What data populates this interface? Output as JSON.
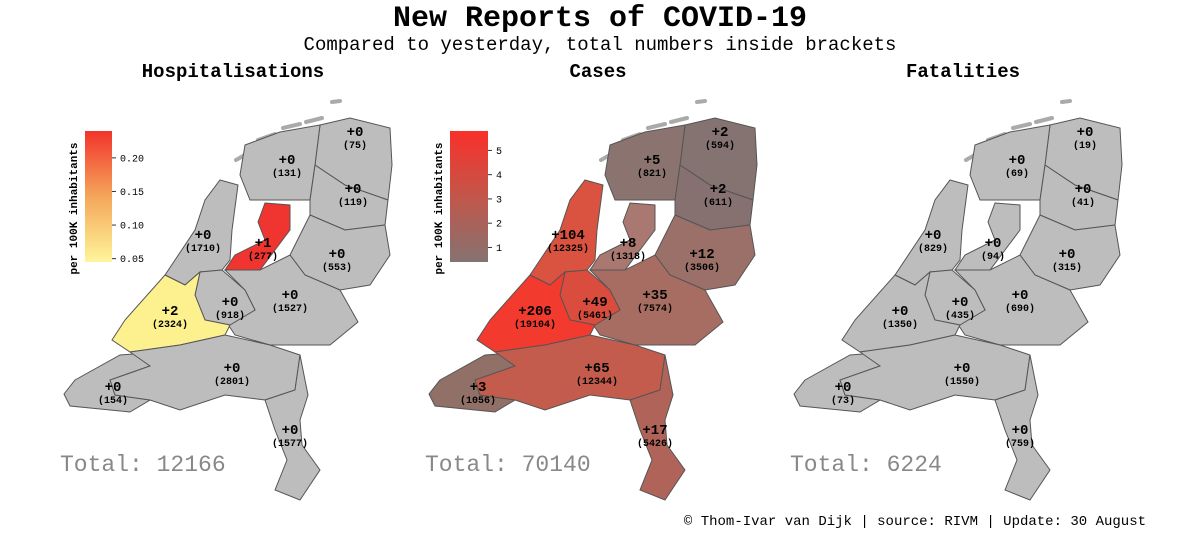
{
  "title": "New Reports of COVID-19",
  "subtitle": "Compared to yesterday, total numbers inside brackets",
  "credit": "© Thom-Ivar van Dijk | source: RIVM | Update: 30 August",
  "maps": [
    {
      "title": "Hospitalisations",
      "total": "Total: 12166",
      "colorbar": {
        "label": "per 100K inhabitants",
        "lim": [
          0.045,
          0.24
        ],
        "colors": [
          "#fff59a",
          "#f4a65a",
          "#f2332c"
        ],
        "ticks": [
          {
            "value": 0.2,
            "label": "0.20"
          },
          {
            "value": 0.15,
            "label": "0.15"
          },
          {
            "value": 0.1,
            "label": "0.10"
          },
          {
            "value": 0.05,
            "label": "0.05"
          }
        ]
      },
      "regions": [
        {
          "delta": "+0",
          "total": "(75)",
          "color": "#bdbdbd"
        },
        {
          "delta": "+0",
          "total": "(131)",
          "color": "#bdbdbd"
        },
        {
          "delta": "+0",
          "total": "(119)",
          "color": "#bdbdbd"
        },
        {
          "delta": "+1",
          "total": "(277)",
          "color": "#f03530"
        },
        {
          "delta": "+0",
          "total": "(553)",
          "color": "#bdbdbd"
        },
        {
          "delta": "+0",
          "total": "(1710)",
          "color": "#bdbdbd"
        },
        {
          "delta": "+0",
          "total": "(1527)",
          "color": "#bdbdbd"
        },
        {
          "delta": "+0",
          "total": "(918)",
          "color": "#bdbdbd"
        },
        {
          "delta": "+2",
          "total": "(2324)",
          "color": "#fdf08e"
        },
        {
          "delta": "+0",
          "total": "(154)",
          "color": "#bdbdbd"
        },
        {
          "delta": "+0",
          "total": "(2801)",
          "color": "#bdbdbd"
        },
        {
          "delta": "+0",
          "total": "(1577)",
          "color": "#bdbdbd"
        }
      ]
    },
    {
      "title": "Cases",
      "total": "Total: 70140",
      "colorbar": {
        "label": "per 100K inhabitants",
        "lim": [
          0.4,
          5.8
        ],
        "colors": [
          "#857371",
          "#c2564a",
          "#f9302a"
        ],
        "ticks": [
          5,
          4,
          3,
          2,
          1
        ]
      },
      "regions": [
        {
          "delta": "+2",
          "total": "(594)",
          "color": "#857371"
        },
        {
          "delta": "+5",
          "total": "(821)",
          "color": "#8b7470"
        },
        {
          "delta": "+2",
          "total": "(611)",
          "color": "#867170"
        },
        {
          "delta": "+8",
          "total": "(1318)",
          "color": "#a97870"
        },
        {
          "delta": "+12",
          "total": "(3506)",
          "color": "#9a7068"
        },
        {
          "delta": "+104",
          "total": "(12325)",
          "color": "#d95340"
        },
        {
          "delta": "+35",
          "total": "(7574)",
          "color": "#a86d62"
        },
        {
          "delta": "+49",
          "total": "(5461)",
          "color": "#da4c3d"
        },
        {
          "delta": "+206",
          "total": "(19104)",
          "color": "#f23a2e"
        },
        {
          "delta": "+3",
          "total": "(1056)",
          "color": "#917068"
        },
        {
          "delta": "+65",
          "total": "(12344)",
          "color": "#c35c4d"
        },
        {
          "delta": "+17",
          "total": "(5426)",
          "color": "#b06459"
        }
      ]
    },
    {
      "title": "Fatalities",
      "total": "Total: 6224",
      "regions": [
        {
          "delta": "+0",
          "total": "(19)",
          "color": "#bdbdbd"
        },
        {
          "delta": "+0",
          "total": "(69)",
          "color": "#bdbdbd"
        },
        {
          "delta": "+0",
          "total": "(41)",
          "color": "#bdbdbd"
        },
        {
          "delta": "+0",
          "total": "(94)",
          "color": "#bdbdbd"
        },
        {
          "delta": "+0",
          "total": "(315)",
          "color": "#bdbdbd"
        },
        {
          "delta": "+0",
          "total": "(829)",
          "color": "#bdbdbd"
        },
        {
          "delta": "+0",
          "total": "(690)",
          "color": "#bdbdbd"
        },
        {
          "delta": "+0",
          "total": "(435)",
          "color": "#bdbdbd"
        },
        {
          "delta": "+0",
          "total": "(1350)",
          "color": "#bdbdbd"
        },
        {
          "delta": "+0",
          "total": "(73)",
          "color": "#bdbdbd"
        },
        {
          "delta": "+0",
          "total": "(1550)",
          "color": "#bdbdbd"
        },
        {
          "delta": "+0",
          "total": "(759)",
          "color": "#bdbdbd"
        }
      ]
    }
  ]
}
